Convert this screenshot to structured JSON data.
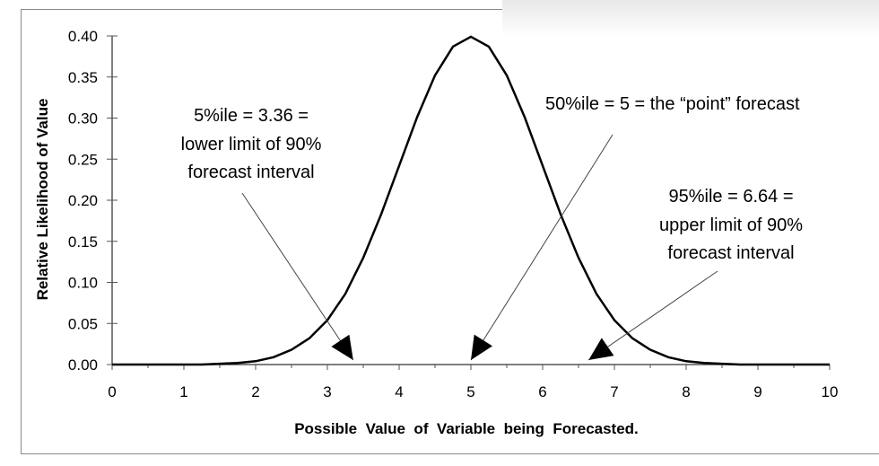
{
  "chart_data": {
    "type": "line",
    "title": "",
    "xlabel": "Possible  Value  of  Variable  being  Forecasted.",
    "ylabel": "Relative Likelihood of Value",
    "xlim": [
      0,
      10
    ],
    "ylim": [
      0,
      0.4
    ],
    "xticks": [
      "0",
      "1",
      "2",
      "3",
      "4",
      "5",
      "6",
      "7",
      "8",
      "9",
      "10"
    ],
    "yticks": [
      "0.00",
      "0.05",
      "0.10",
      "0.15",
      "0.20",
      "0.25",
      "0.30",
      "0.35",
      "0.40"
    ],
    "grid": false,
    "line_color": "#000000",
    "x": [
      0,
      0.25,
      0.5,
      0.75,
      1,
      1.25,
      1.5,
      1.75,
      2,
      2.25,
      2.5,
      2.75,
      3,
      3.25,
      3.5,
      3.75,
      4,
      4.25,
      4.5,
      4.75,
      5,
      5.25,
      5.5,
      5.75,
      6,
      6.25,
      6.5,
      6.75,
      7,
      7.25,
      7.5,
      7.75,
      8,
      8.25,
      8.5,
      8.75,
      9,
      9.25,
      9.5,
      9.75,
      10
    ],
    "y": [
      0,
      0,
      0,
      0,
      0,
      0,
      0.001,
      0.002,
      0.004,
      0.009,
      0.018,
      0.032,
      0.054,
      0.086,
      0.13,
      0.183,
      0.242,
      0.301,
      0.352,
      0.387,
      0.399,
      0.387,
      0.352,
      0.301,
      0.242,
      0.183,
      0.13,
      0.086,
      0.054,
      0.032,
      0.018,
      0.009,
      0.004,
      0.002,
      0.001,
      0,
      0,
      0,
      0,
      0,
      0
    ],
    "annotations": [
      {
        "lines": [
          "5%ile  =  3.36  =",
          "lower limit of 90%",
          "forecast interval"
        ],
        "target_x": 3.36
      },
      {
        "lines": [
          "50%ile = 5 = the “point” forecast"
        ],
        "target_x": 5
      },
      {
        "lines": [
          "95%ile  = 6.64 =",
          "upper limit of 90%",
          "forecast interval"
        ],
        "target_x": 6.64
      }
    ]
  }
}
